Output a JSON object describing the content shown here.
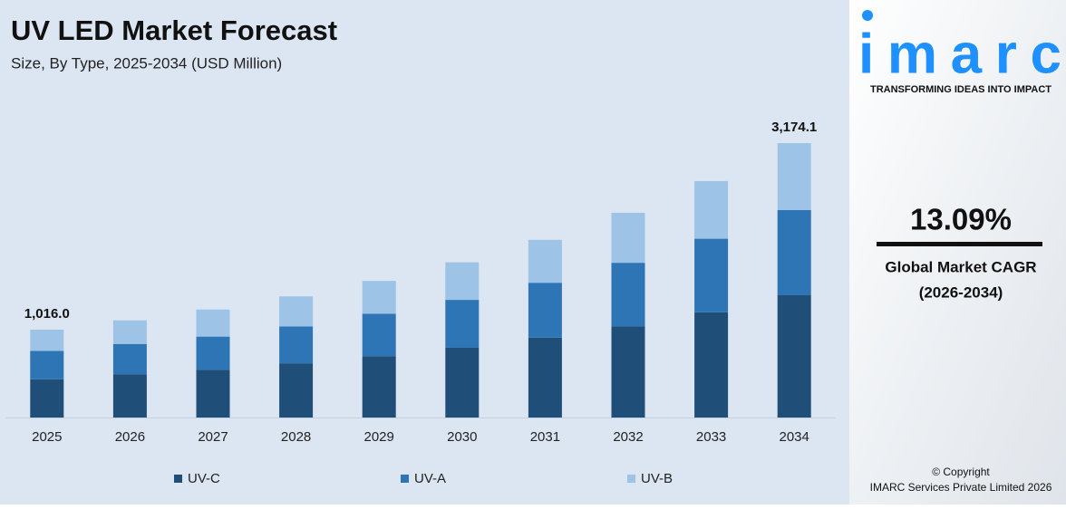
{
  "chart_data": {
    "type": "stacked-bar",
    "title": "UV LED Market Forecast",
    "subtitle": "Size, By Type, 2025-2034 (USD Million)",
    "categories": [
      "2025",
      "2026",
      "2027",
      "2028",
      "2029",
      "2030",
      "2031",
      "2032",
      "2033",
      "2034"
    ],
    "series": [
      {
        "name": "UV-C",
        "color": "#1f4e79",
        "values": [
          442,
          501,
          553,
          627,
          708,
          807,
          924,
          1056,
          1217,
          1414.1
        ]
      },
      {
        "name": "UV-A",
        "color": "#2e75b6",
        "values": [
          328,
          350,
          383,
          427,
          493,
          554,
          635,
          734,
          851,
          985
        ]
      },
      {
        "name": "UV-B",
        "color": "#9dc3e6",
        "values": [
          246,
          273,
          313,
          347,
          379,
          434,
          496,
          578,
          667,
          775
        ]
      }
    ],
    "total_labels": [
      {
        "value": 1016.0,
        "label": "1,016.0"
      },
      null,
      null,
      null,
      null,
      null,
      null,
      null,
      null,
      {
        "value": 3174.1,
        "label": "3,174.1"
      }
    ],
    "legend": "bottom"
  },
  "sidebar": {
    "logo": "imarc",
    "tagline": "TRANSFORMING IDEAS INTO IMPACT",
    "cagr": "13.09%",
    "cagr_label": "Global Market CAGR",
    "cagr_period": "(2026-2034)",
    "copyright": "© Copyright",
    "company": "IMARC Services Private Limited 2026"
  }
}
